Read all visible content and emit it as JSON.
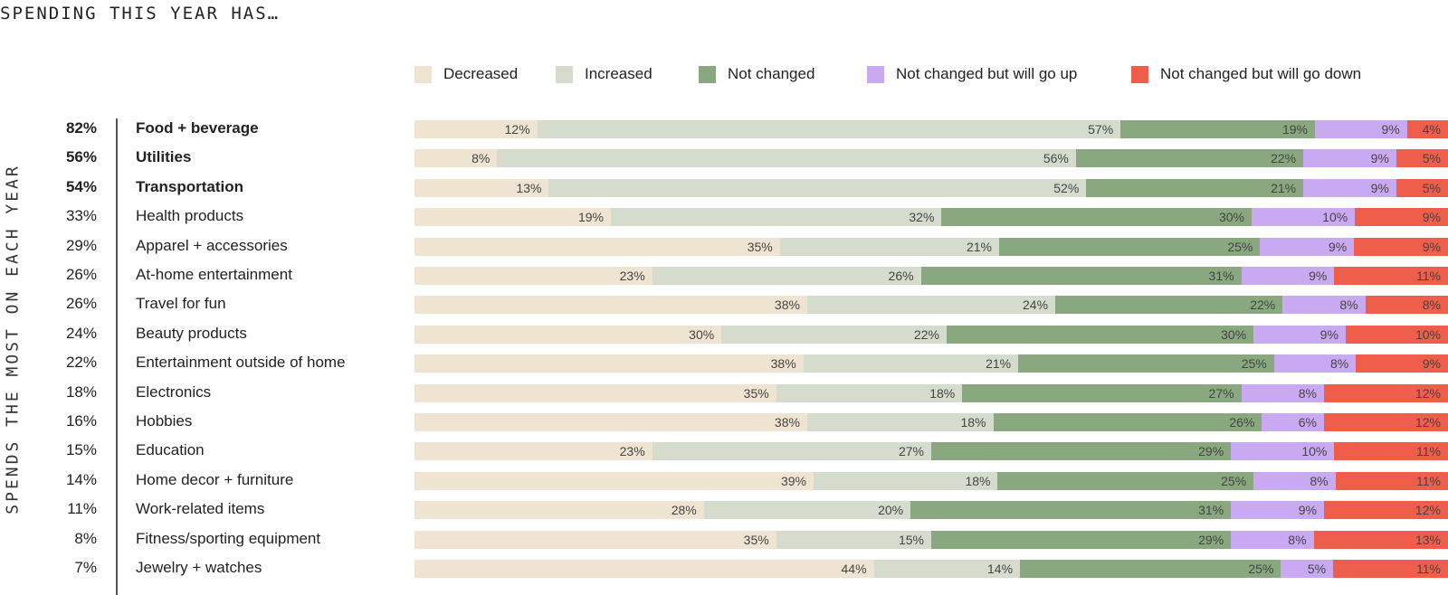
{
  "title": "SPENDING THIS YEAR HAS…",
  "side_label": "SPENDS THE MOST ON EACH YEAR",
  "colors": {
    "Decreased": "#efe4d2",
    "Increased": "#d6dccd",
    "Not changed": "#8aa87f",
    "Not changed but will go up": "#c9aaf2",
    "Not changed but will go down": "#ef5e4a"
  },
  "chart_data": {
    "type": "bar",
    "orientation": "horizontal",
    "stacked": true,
    "title": "SPENDING THIS YEAR HAS…",
    "ylabel": "SPENDS THE MOST ON EACH YEAR",
    "legend_position": "top",
    "series_names": [
      "Decreased",
      "Increased",
      "Not changed",
      "Not changed but will go up",
      "Not changed but will go down"
    ],
    "categories": [
      {
        "name": "Food + beverage",
        "spends_most": "82%",
        "bold": true,
        "values": [
          12,
          57,
          19,
          9,
          4
        ]
      },
      {
        "name": "Utilities",
        "spends_most": "56%",
        "bold": true,
        "values": [
          8,
          56,
          22,
          9,
          5
        ]
      },
      {
        "name": "Transportation",
        "spends_most": "54%",
        "bold": true,
        "values": [
          13,
          52,
          21,
          9,
          5
        ]
      },
      {
        "name": "Health products",
        "spends_most": "33%",
        "bold": false,
        "values": [
          19,
          32,
          30,
          10,
          9
        ]
      },
      {
        "name": "Apparel + accessories",
        "spends_most": "29%",
        "bold": false,
        "values": [
          35,
          21,
          25,
          9,
          9
        ]
      },
      {
        "name": "At-home entertainment",
        "spends_most": "26%",
        "bold": false,
        "values": [
          23,
          26,
          31,
          9,
          11
        ]
      },
      {
        "name": "Travel for fun",
        "spends_most": "26%",
        "bold": false,
        "values": [
          38,
          24,
          22,
          8,
          8
        ]
      },
      {
        "name": "Beauty products",
        "spends_most": "24%",
        "bold": false,
        "values": [
          30,
          22,
          30,
          9,
          10
        ]
      },
      {
        "name": "Entertainment outside of home",
        "spends_most": "22%",
        "bold": false,
        "values": [
          38,
          21,
          25,
          8,
          9
        ]
      },
      {
        "name": "Electronics",
        "spends_most": "18%",
        "bold": false,
        "values": [
          35,
          18,
          27,
          8,
          12
        ]
      },
      {
        "name": "Hobbies",
        "spends_most": "16%",
        "bold": false,
        "values": [
          38,
          18,
          26,
          6,
          12
        ]
      },
      {
        "name": "Education",
        "spends_most": "15%",
        "bold": false,
        "values": [
          23,
          27,
          29,
          10,
          11
        ]
      },
      {
        "name": "Home decor + furniture",
        "spends_most": "14%",
        "bold": false,
        "values": [
          39,
          18,
          25,
          8,
          11
        ]
      },
      {
        "name": "Work-related items",
        "spends_most": "11%",
        "bold": false,
        "values": [
          28,
          20,
          31,
          9,
          12
        ]
      },
      {
        "name": "Fitness/sporting equipment",
        "spends_most": "8%",
        "bold": false,
        "values": [
          35,
          15,
          29,
          8,
          13
        ]
      },
      {
        "name": "Jewelry + watches",
        "spends_most": "7%",
        "bold": false,
        "values": [
          44,
          14,
          25,
          5,
          11
        ]
      }
    ]
  }
}
